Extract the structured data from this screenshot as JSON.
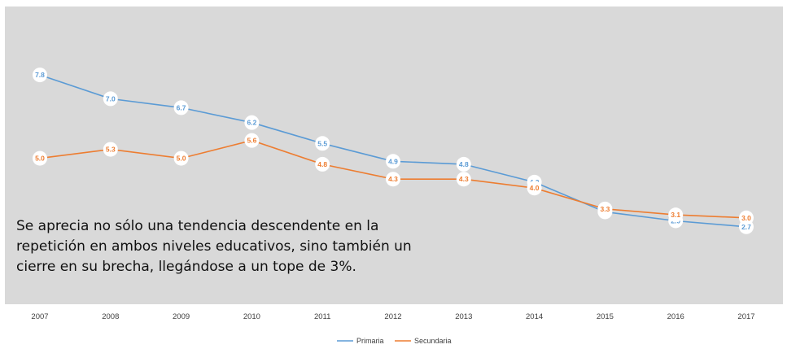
{
  "chart_data": {
    "type": "line",
    "title": "",
    "xlabel": "",
    "ylabel": "",
    "categories": [
      "2007",
      "2008",
      "2009",
      "2010",
      "2011",
      "2012",
      "2013",
      "2014",
      "2015",
      "2016",
      "2017"
    ],
    "series": [
      {
        "name": "Primaria",
        "color": "#5b9bd5",
        "values": [
          7.8,
          7.0,
          6.7,
          6.2,
          5.5,
          4.9,
          4.8,
          4.2,
          3.2,
          2.9,
          2.7
        ],
        "labels": [
          "7.8",
          "7.0",
          "6.7",
          "6.2",
          "5.5",
          "4.9",
          "4.8",
          "4.2",
          "3.2",
          "2.9",
          "2.7"
        ]
      },
      {
        "name": "Secundaria",
        "color": "#ed7d31",
        "values": [
          5.0,
          5.3,
          5.0,
          5.6,
          4.8,
          4.3,
          4.3,
          4.0,
          3.3,
          3.1,
          3.0
        ],
        "labels": [
          "5.0",
          "5.3",
          "5.0",
          "5.6",
          "4.8",
          "4.3",
          "4.3",
          "4.0",
          "3.3",
          "3.1",
          "3.0"
        ]
      }
    ],
    "ylim": [
      0,
      9
    ],
    "grid": false,
    "legend": "bottom-center",
    "annotation": "Se aprecia no sólo una tendencia descendente en la repetición en ambos niveles educativos, sino también un cierre en su brecha, llegándose a un tope de 3%.",
    "plot_background": "#d9d9d9"
  }
}
